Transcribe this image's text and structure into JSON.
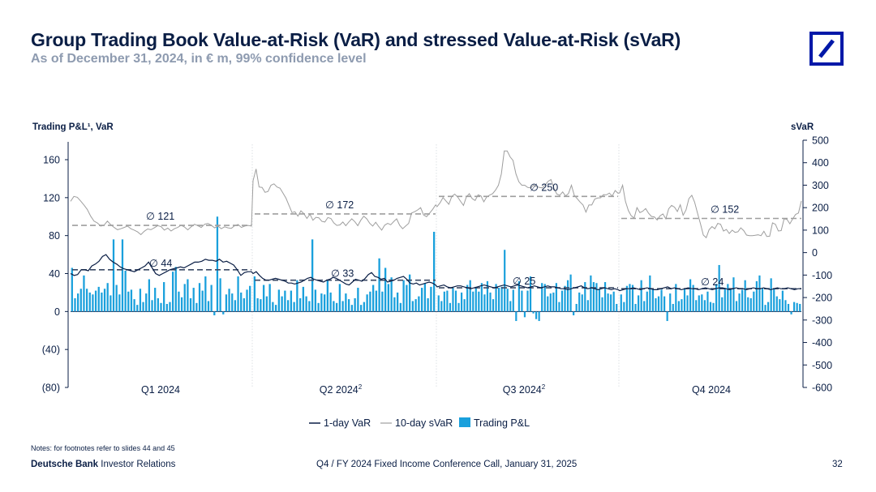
{
  "header": {
    "title": "Group Trading Book Value-at-Risk (VaR) and stressed Value-at-Risk (sVaR)",
    "subtitle": "As of December 31, 2024, in € m, 99% confidence level"
  },
  "footer": {
    "note": "Notes: for footnotes refer to slides 44 and 45",
    "brand_bold": "Deutsche Bank",
    "brand_rest": " Investor Relations",
    "conference": "Q4 / FY 2024 Fixed Income Conference Call, January 31, 2025",
    "page": "32"
  },
  "colors": {
    "navy": "#0a1e45",
    "bars": "#1aa0dc",
    "svar_line": "#9e9e9e",
    "avg_dash": "#9e9e9e",
    "brand": "#0018a8"
  },
  "chart_data": {
    "type": "bar",
    "left_axis_label": "Trading P&L¹, VaR",
    "right_axis_label": "sVaR",
    "left_ylim": [
      -80,
      180
    ],
    "left_ticks": [
      160,
      120,
      80,
      40,
      0,
      -40,
      -80
    ],
    "left_tick_labels": [
      "160",
      "120",
      "80",
      "40",
      "0",
      "(40)",
      "(80)"
    ],
    "right_ylim": [
      -600,
      500
    ],
    "right_ticks": [
      500,
      400,
      300,
      200,
      100,
      0,
      -100,
      -200,
      -300,
      -400,
      -500,
      -600
    ],
    "right_tick_labels": [
      "500",
      "400",
      "300",
      "200",
      "100",
      "0",
      "-100",
      "-200",
      "-300",
      "-400",
      "-500",
      "-600"
    ],
    "quarter_labels": [
      "Q1 2024",
      "Q2 2024",
      "Q3 2024",
      "Q4 2024"
    ],
    "quarter_superscripts": [
      "",
      "2",
      "2",
      ""
    ],
    "legend": [
      "1-day VaR",
      "10-day sVaR",
      "Trading P&L"
    ],
    "averages": {
      "var": [
        44,
        33,
        25,
        24
      ],
      "svar": [
        121,
        172,
        250,
        152
      ],
      "var_labels": [
        "∅ 44",
        "∅ 33",
        "∅ 25",
        "∅ 24"
      ],
      "svar_labels": [
        "∅ 121",
        "∅ 172",
        "∅ 250",
        "∅ 152"
      ]
    },
    "series": [
      {
        "name": "Trading P&L",
        "axis": "left",
        "values": [
          [
            46,
            14,
            19,
            24,
            38,
            24,
            20,
            18,
            22,
            26,
            20,
            24,
            30,
            17,
            76,
            28,
            18,
            76,
            43,
            21,
            23,
            13,
            7,
            24,
            10,
            19,
            34,
            12,
            25,
            14,
            9,
            31,
            8,
            10,
            42,
            47,
            21,
            15,
            29,
            34,
            14,
            25,
            9,
            30,
            22,
            37,
            11,
            28,
            -4,
            100,
            35,
            -3,
            18,
            24,
            19,
            12,
            37,
            20,
            14,
            23,
            27
          ],
          [
            37,
            14,
            13,
            28,
            16,
            29,
            10,
            7,
            23,
            16,
            22,
            12,
            22,
            10,
            33,
            14,
            26,
            16,
            11,
            76,
            23,
            9,
            19,
            18,
            33,
            20,
            11,
            9,
            29,
            11,
            19,
            13,
            7,
            14,
            25,
            7,
            10,
            18,
            21,
            28,
            22,
            56,
            21,
            46,
            29,
            36,
            15,
            20,
            9,
            33,
            28,
            39,
            11,
            13,
            16,
            25,
            30,
            14,
            26,
            84
          ],
          [
            17,
            11,
            21,
            22,
            9,
            25,
            22,
            9,
            20,
            13,
            28,
            33,
            21,
            26,
            21,
            30,
            18,
            32,
            20,
            13,
            29,
            25,
            26,
            65,
            24,
            11,
            23,
            -10,
            32,
            22,
            -6,
            22,
            37,
            -2,
            -8,
            -10,
            30,
            29,
            16,
            19,
            20,
            30,
            10,
            22,
            27,
            33,
            39,
            -4,
            8,
            20,
            18,
            31,
            12,
            38,
            31,
            30,
            24,
            15,
            31,
            19,
            18,
            21,
            8
          ],
          [
            18,
            10,
            27,
            29,
            28,
            8,
            17,
            33,
            11,
            21,
            38,
            24,
            14,
            16,
            23,
            16,
            -10,
            19,
            8,
            29,
            11,
            13,
            24,
            17,
            34,
            28,
            12,
            17,
            18,
            12,
            21,
            10,
            9,
            29,
            49,
            15,
            25,
            29,
            24,
            36,
            11,
            19,
            23,
            33,
            15,
            14,
            21,
            32,
            38,
            25,
            7,
            10,
            35,
            24,
            16,
            13,
            22,
            12,
            8,
            -3,
            10,
            9,
            8
          ]
        ]
      },
      {
        "name": "1-day VaR",
        "axis": "left",
        "values": [
          [
            40,
            38,
            39,
            44,
            44,
            43,
            48,
            50,
            53,
            58,
            60,
            55,
            52,
            50,
            47,
            45,
            44,
            43,
            42,
            44,
            46,
            48,
            52,
            46,
            40,
            38,
            40,
            42,
            44,
            45,
            46,
            47,
            46,
            48,
            50,
            52,
            52,
            53,
            55,
            54,
            54,
            53,
            55,
            52,
            53,
            51,
            49,
            44,
            38,
            41,
            42,
            42
          ],
          [
            40,
            42,
            38,
            35,
            33,
            33,
            34,
            35,
            34,
            33,
            32,
            30,
            30,
            29,
            30,
            31,
            33,
            35,
            36,
            34,
            33,
            32,
            31,
            33,
            34,
            36,
            35,
            33,
            31,
            29,
            28,
            31,
            34,
            33,
            32,
            35,
            39,
            41,
            37,
            36,
            34,
            35,
            31,
            32,
            33,
            35,
            36,
            37,
            34,
            30,
            29,
            30,
            28,
            29,
            30,
            31,
            30,
            28
          ],
          [
            26,
            27,
            28,
            26,
            25,
            26,
            27,
            27,
            26,
            25,
            24,
            25,
            26,
            27,
            28,
            27,
            26,
            25,
            26,
            27,
            28,
            27,
            26,
            27,
            28,
            27,
            26,
            25,
            26,
            27,
            26,
            25,
            26,
            27,
            26,
            26,
            25,
            24,
            24,
            23,
            24,
            25,
            26,
            27,
            25,
            24,
            25,
            24,
            23,
            24,
            25,
            24,
            23,
            24,
            23
          ],
          [
            22,
            23,
            24,
            24,
            25,
            24,
            23,
            24,
            25,
            24,
            23,
            23,
            24,
            25,
            26,
            24,
            25,
            24,
            23,
            24,
            25,
            24,
            24,
            23,
            24,
            25,
            24,
            23,
            24,
            25,
            25,
            24,
            23,
            24,
            25,
            24,
            24,
            23,
            24,
            25,
            24,
            24,
            25,
            24,
            23,
            24,
            25,
            24,
            24,
            25,
            24,
            23,
            24,
            24
          ]
        ]
      },
      {
        "name": "10-day sVaR",
        "axis": "right",
        "values": [
          [
            228,
            250,
            246,
            230,
            212,
            192,
            162,
            140,
            132,
            118,
            122,
            140,
            124,
            112,
            102,
            106,
            112,
            118,
            106,
            100,
            92,
            80,
            95,
            105,
            102,
            110,
            120,
            116,
            100,
            109,
            96,
            106,
            112,
            122,
            114,
            101,
            115,
            126,
            120,
            112,
            126,
            130,
            122,
            110,
            118,
            106,
            115,
            110,
            108,
            120,
            125,
            112,
            118,
            121,
            118
          ],
          [
            320,
            372,
            292,
            290,
            268,
            272,
            300,
            306,
            292,
            287,
            265,
            242,
            210,
            178,
            182,
            162,
            186,
            173,
            152,
            171,
            144,
            157,
            155,
            139,
            136,
            156,
            152,
            132,
            121,
            123,
            136,
            120,
            136,
            150,
            138,
            120,
            144,
            162,
            150,
            130,
            118,
            135,
            116,
            100,
            122,
            130,
            124,
            138,
            150,
            122,
            106,
            118,
            130,
            176,
            182,
            190,
            200,
            168,
            160,
            175,
            192,
            212
          ],
          [
            205,
            222,
            245,
            230,
            215,
            250,
            260,
            248,
            228,
            210,
            248,
            262,
            240,
            232,
            257,
            252,
            226,
            248,
            256,
            262,
            278,
            300,
            350,
            452,
            452,
            426,
            410,
            350,
            315,
            300,
            300,
            290,
            288,
            300,
            294,
            290,
            288,
            301,
            317,
            325,
            287,
            260,
            255,
            270,
            252,
            263,
            300,
            255,
            240,
            225,
            212,
            180,
            212,
            212,
            238,
            243,
            244,
            258,
            257,
            265,
            252,
            276,
            264
          ],
          [
            266,
            300,
            228,
            187,
            164,
            154,
            200,
            178,
            184,
            196,
            175,
            161,
            159,
            145,
            164,
            172,
            150,
            195,
            210,
            202,
            183,
            213,
            166,
            190,
            240,
            255,
            224,
            175,
            128,
            78,
            66,
            102,
            116,
            106,
            130,
            126,
            96,
            103,
            85,
            100,
            90,
            93,
            110,
            98,
            78,
            75,
            75,
            77,
            79,
            75,
            95,
            72,
            73,
            132,
            126,
            96,
            98,
            150,
            148,
            128,
            150,
            170,
            176,
            230
          ]
        ]
      }
    ]
  }
}
